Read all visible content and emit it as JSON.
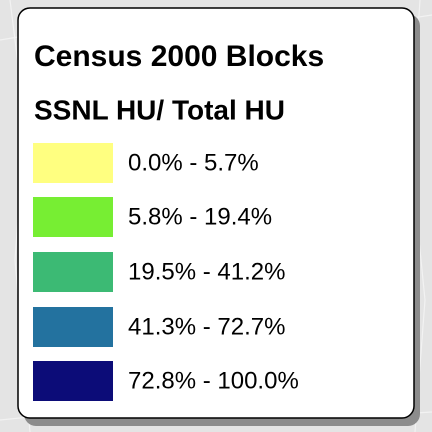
{
  "legend": {
    "title": "Census 2000 Blocks",
    "subtitle": "SSNL HU/ Total HU",
    "items": [
      {
        "label": "0.0% - 5.7%",
        "color": "#ffff80"
      },
      {
        "label": "5.8% - 19.4%",
        "color": "#77ee33"
      },
      {
        "label": "19.5% - 41.2%",
        "color": "#3cba74"
      },
      {
        "label": "41.3% - 72.7%",
        "color": "#23729f"
      },
      {
        "label": "72.8% - 100.0%",
        "color": "#0c0c78"
      }
    ]
  }
}
